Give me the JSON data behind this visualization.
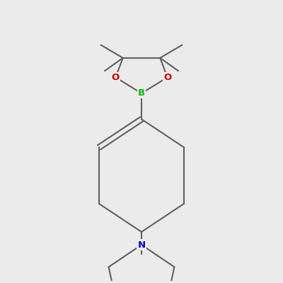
{
  "background_color": "#ebebeb",
  "bond_color": "#606060",
  "bond_width": 1.5,
  "atom_colors": {
    "B": "#00bb00",
    "O": "#cc0000",
    "N": "#0000cc"
  },
  "font_size_atom": 9.5
}
